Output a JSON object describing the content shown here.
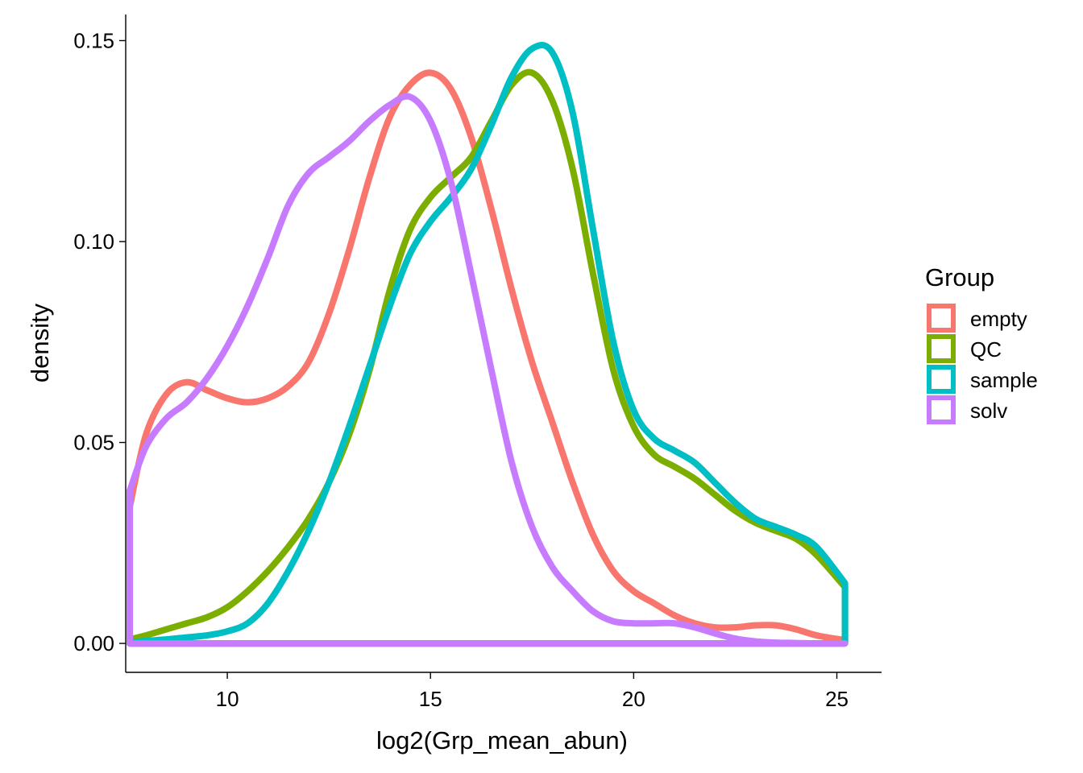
{
  "chart_data": {
    "type": "density",
    "title": "",
    "xlabel": "log2(Grp_mean_abun)",
    "ylabel": "density",
    "xlim": [
      7.5,
      26.1
    ],
    "ylim": [
      -0.0072,
      0.1565
    ],
    "x_ticks": [
      10,
      15,
      20,
      25
    ],
    "x_tick_labels": [
      "10",
      "15",
      "20",
      "25"
    ],
    "y_ticks": [
      0.0,
      0.05,
      0.1,
      0.15
    ],
    "y_tick_labels": [
      "0.00",
      "0.05",
      "0.10",
      "0.15"
    ],
    "grid": false,
    "legend": {
      "title": "Group",
      "position": "right"
    },
    "series": [
      {
        "name": "empty",
        "color": "#F8766D",
        "x": [
          7.6,
          8.0,
          8.5,
          9.0,
          9.5,
          10.0,
          10.5,
          11.0,
          11.5,
          12.0,
          12.5,
          13.0,
          13.5,
          14.0,
          14.5,
          15.0,
          15.5,
          16.0,
          16.5,
          17.0,
          17.5,
          18.0,
          18.5,
          19.0,
          19.5,
          20.0,
          20.5,
          21.0,
          21.5,
          22.0,
          22.5,
          23.0,
          23.5,
          24.0,
          24.5,
          25.2
        ],
        "values": [
          0.034,
          0.052,
          0.062,
          0.065,
          0.063,
          0.061,
          0.06,
          0.061,
          0.064,
          0.07,
          0.082,
          0.098,
          0.116,
          0.131,
          0.139,
          0.142,
          0.138,
          0.126,
          0.108,
          0.088,
          0.07,
          0.055,
          0.04,
          0.027,
          0.018,
          0.013,
          0.01,
          0.007,
          0.005,
          0.004,
          0.004,
          0.0045,
          0.0045,
          0.0035,
          0.002,
          0.0008
        ]
      },
      {
        "name": "QC",
        "color": "#7CAE00",
        "x": [
          7.6,
          8.0,
          8.5,
          9.0,
          9.5,
          10.0,
          10.5,
          11.0,
          11.5,
          12.0,
          12.5,
          13.0,
          13.5,
          14.0,
          14.5,
          15.0,
          15.5,
          16.0,
          16.5,
          17.0,
          17.5,
          18.0,
          18.5,
          19.0,
          19.5,
          20.0,
          20.5,
          21.0,
          21.5,
          22.0,
          22.5,
          23.0,
          23.5,
          24.0,
          24.5,
          25.2
        ],
        "values": [
          0.001,
          0.002,
          0.0035,
          0.005,
          0.0065,
          0.009,
          0.013,
          0.018,
          0.024,
          0.031,
          0.04,
          0.052,
          0.068,
          0.088,
          0.103,
          0.111,
          0.116,
          0.121,
          0.13,
          0.139,
          0.142,
          0.135,
          0.118,
          0.092,
          0.068,
          0.054,
          0.047,
          0.044,
          0.041,
          0.037,
          0.033,
          0.03,
          0.028,
          0.026,
          0.022,
          0.014
        ]
      },
      {
        "name": "sample",
        "color": "#00BFC4",
        "x": [
          7.6,
          8.0,
          8.5,
          9.0,
          9.5,
          10.0,
          10.5,
          11.0,
          11.5,
          12.0,
          12.5,
          13.0,
          13.5,
          14.0,
          14.5,
          15.0,
          15.5,
          16.0,
          16.5,
          17.0,
          17.5,
          18.0,
          18.5,
          19.0,
          19.5,
          20.0,
          20.5,
          21.0,
          21.5,
          22.0,
          22.5,
          23.0,
          23.5,
          24.0,
          24.5,
          25.2
        ],
        "values": [
          0.0003,
          0.0006,
          0.001,
          0.0015,
          0.002,
          0.003,
          0.005,
          0.01,
          0.018,
          0.028,
          0.04,
          0.054,
          0.069,
          0.084,
          0.097,
          0.105,
          0.111,
          0.118,
          0.129,
          0.141,
          0.148,
          0.147,
          0.132,
          0.103,
          0.075,
          0.058,
          0.051,
          0.048,
          0.045,
          0.04,
          0.035,
          0.031,
          0.029,
          0.027,
          0.024,
          0.015
        ]
      },
      {
        "name": "solv",
        "color": "#C77CFF",
        "x": [
          7.6,
          8.0,
          8.5,
          9.0,
          9.5,
          10.0,
          10.5,
          11.0,
          11.5,
          12.0,
          12.5,
          13.0,
          13.5,
          14.0,
          14.5,
          15.0,
          15.5,
          16.0,
          16.5,
          17.0,
          17.5,
          18.0,
          18.5,
          19.0,
          19.5,
          20.0,
          20.5,
          21.0,
          21.5,
          22.0,
          22.5,
          23.0,
          23.5,
          24.0,
          24.5,
          25.2
        ],
        "values": [
          0.038,
          0.049,
          0.056,
          0.06,
          0.066,
          0.074,
          0.084,
          0.096,
          0.109,
          0.117,
          0.121,
          0.125,
          0.13,
          0.134,
          0.136,
          0.13,
          0.115,
          0.092,
          0.068,
          0.045,
          0.029,
          0.019,
          0.013,
          0.008,
          0.0055,
          0.005,
          0.005,
          0.005,
          0.004,
          0.0025,
          0.0012,
          0.0005,
          0.0002,
          0.0001,
          0.0,
          0.0
        ]
      }
    ]
  }
}
